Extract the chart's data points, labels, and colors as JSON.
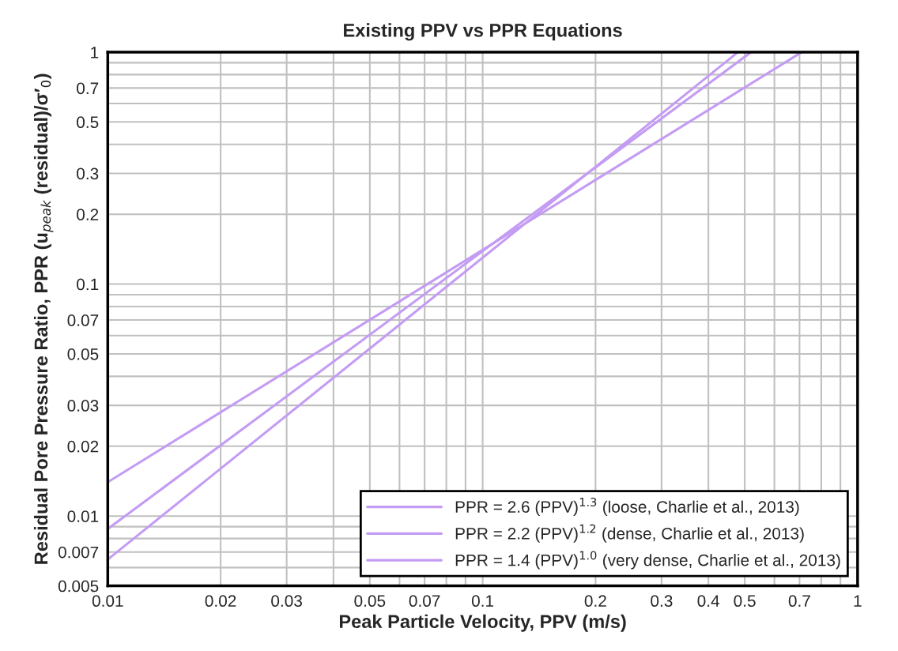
{
  "chart_data": {
    "type": "line",
    "title": "Existing PPV vs PPR Equations",
    "xlabel": "Peak Particle Velocity, PPV (m/s)",
    "ylabel": "Residual Pore Pressure Ratio, PPR (u$_{peak}$ (residual)/σ′$_{0}$)",
    "log": "xy",
    "grid": true,
    "legend": "bottom right",
    "marker": "none",
    "line_style": "solid",
    "xlim": [
      0.01,
      1
    ],
    "ylim": [
      0.005,
      1
    ],
    "xticks": [
      0.01,
      0.02,
      0.03,
      {
        "value": 0.04,
        "label": null
      },
      0.05,
      {
        "value": 0.06,
        "label": null
      },
      0.07,
      {
        "value": 0.08,
        "label": null
      },
      {
        "value": 0.09,
        "label": null
      },
      0.1,
      0.2,
      0.3,
      0.4,
      0.5,
      {
        "value": 0.6,
        "label": null
      },
      0.7,
      {
        "value": 0.8,
        "label": null
      },
      {
        "value": 0.9,
        "label": null
      },
      1
    ],
    "yticks": [
      0.005,
      {
        "value": 0.006,
        "label": null
      },
      0.007,
      {
        "value": 0.008,
        "label": null
      },
      {
        "value": 0.009,
        "label": null
      },
      0.01,
      0.02,
      0.03,
      {
        "value": 0.04,
        "label": null
      },
      0.05,
      {
        "value": 0.06,
        "label": null
      },
      0.07,
      {
        "value": 0.08,
        "label": null
      },
      {
        "value": 0.09,
        "label": null
      },
      0.1,
      0.2,
      0.3,
      {
        "value": 0.4,
        "label": null
      },
      0.5,
      {
        "value": 0.6,
        "label": null
      },
      0.7,
      {
        "value": 0.8,
        "label": null
      },
      {
        "value": 0.9,
        "label": null
      },
      1
    ],
    "series": [
      {
        "name": "PPR = 2.6 (PPV)$^{1.3}$ (loose, Charlie et al., 2013)",
        "color": "#c49cf4",
        "x": [
          0.01,
          0.48
        ],
        "values": [
          0.0065,
          1
        ]
      },
      {
        "name": "PPR = 2.2 (PPV)$^{1.2}$ (dense, Charlie et al., 2013)",
        "color": "#c49cf4",
        "x": [
          0.01,
          0.52
        ],
        "values": [
          0.0088,
          1
        ]
      },
      {
        "name": "PPR = 1.4 (PPV)$^{1.0}$ (very dense, Charlie et al., 2013)",
        "color": "#c49cf4",
        "x": [
          0.01,
          0.71
        ],
        "values": [
          0.014,
          1
        ]
      }
    ]
  }
}
